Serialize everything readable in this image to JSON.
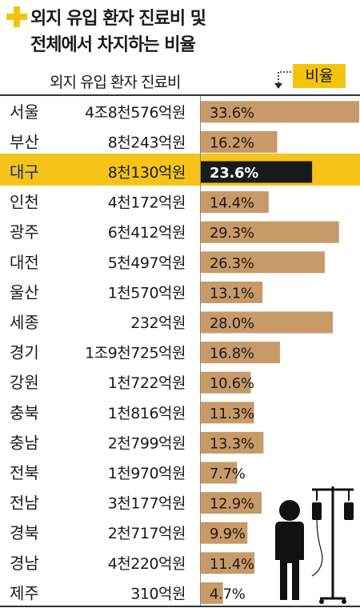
{
  "title": {
    "line1": "외지 유입 환자 진료비 및",
    "line2": "전체에서 차지하는 비율"
  },
  "column_header": "외지 유입 환자 진료비",
  "ratio_label": "비율",
  "colors": {
    "accent": "#f2c40e",
    "bar": "#c79a68",
    "highlight_bar": "#1a1a1a"
  },
  "icons": [
    "plus-icon",
    "arrow-down-icon",
    "patient-iv-icon"
  ],
  "chart_data": {
    "type": "bar",
    "orientation": "horizontal",
    "title": "외지 유입 환자 진료비 및 전체에서 차지하는 비율",
    "xlabel": "",
    "ylabel": "",
    "xlim": [
      0,
      33.6
    ],
    "grid": false,
    "highlight": "대구",
    "categories": [
      "서울",
      "부산",
      "대구",
      "인천",
      "광주",
      "대전",
      "울산",
      "세종",
      "경기",
      "강원",
      "충북",
      "충남",
      "전북",
      "전남",
      "경북",
      "경남",
      "제주"
    ],
    "costs": [
      "4조8천576억원",
      "8천243억원",
      "8천130억원",
      "4천172억원",
      "6천412억원",
      "5천497억원",
      "1천570억원",
      "232억원",
      "1조9천725억원",
      "1천722억원",
      "1천816억원",
      "2천799억원",
      "1천970억원",
      "3천177억원",
      "2천717억원",
      "4천220억원",
      "310억원"
    ],
    "values": [
      33.6,
      16.2,
      23.6,
      14.4,
      29.3,
      26.3,
      13.1,
      28.0,
      16.8,
      10.6,
      11.3,
      13.3,
      7.7,
      12.9,
      9.9,
      11.4,
      4.7
    ],
    "value_labels": [
      "33.6%",
      "16.2%",
      "23.6%",
      "14.4%",
      "29.3%",
      "26.3%",
      "13.1%",
      "28.0%",
      "16.8%",
      "10.6%",
      "11.3%",
      "13.3%",
      "7.7%",
      "12.9%",
      "9.9%",
      "11.4%",
      "4.7%"
    ]
  }
}
